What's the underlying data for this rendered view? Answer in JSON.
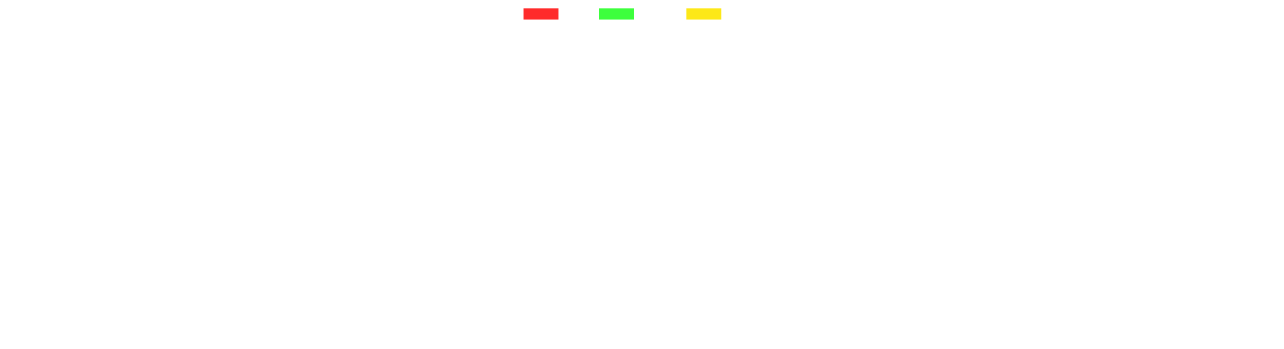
{
  "chart_data": {
    "type": "bar",
    "series": [
      {
        "color": "#ff2b2b"
      },
      {
        "color": "#3dff3d"
      },
      {
        "color": "#fde818"
      }
    ],
    "legend_position": "top-center",
    "grid": false
  }
}
